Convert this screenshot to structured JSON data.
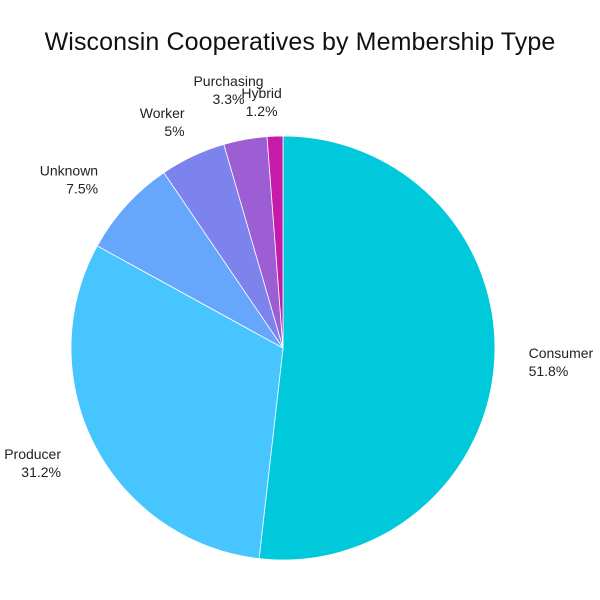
{
  "chart_data": {
    "type": "pie",
    "title": "Wisconsin Cooperatives by Membership Type",
    "slices": [
      {
        "label": "Consumer",
        "value": 51.8,
        "display": "51.8%",
        "color": "#00c9dc"
      },
      {
        "label": "Producer",
        "value": 31.2,
        "display": "31.2%",
        "color": "#47c5ff"
      },
      {
        "label": "Unknown",
        "value": 7.5,
        "display": "7.5%",
        "color": "#66a6fb"
      },
      {
        "label": "Worker",
        "value": 5.0,
        "display": "5%",
        "color": "#7c83ec"
      },
      {
        "label": "Purchasing",
        "value": 3.3,
        "display": "3.3%",
        "color": "#9d5dd3"
      },
      {
        "label": "Hybrid",
        "value": 1.2,
        "display": "1.2%",
        "color": "#c61aa9"
      }
    ],
    "start_angle": "12 o'clock",
    "direction": "clockwise",
    "legend": "none"
  }
}
